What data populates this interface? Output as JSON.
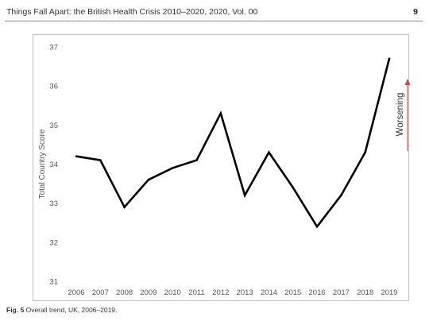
{
  "header": {
    "running_title": "Things Fall Apart: the British Health Crisis 2010–2020, 2020, Vol. 00",
    "page_number": "9"
  },
  "caption": {
    "label": "Fig. 5",
    "text": "Overall trend, UK, 2006–2019."
  },
  "chart_data": {
    "type": "line",
    "title": "",
    "xlabel": "",
    "ylabel": "Total Country Score",
    "categories": [
      "2006",
      "2007",
      "2008",
      "2009",
      "2010",
      "2011",
      "2012",
      "2013",
      "2014",
      "2015",
      "2016",
      "2017",
      "2018",
      "2019"
    ],
    "series": [
      {
        "values": [
          34.2,
          34.1,
          32.9,
          33.6,
          33.9,
          34.1,
          35.3,
          33.2,
          34.3,
          33.4,
          32.4,
          33.2,
          34.3,
          36.7
        ]
      }
    ],
    "ylim": [
      31,
      37
    ],
    "yticks": [
      31,
      32,
      33,
      34,
      35,
      36,
      37
    ],
    "grid": false,
    "legend": "none",
    "annotation": {
      "text": "Worsening",
      "arrow_direction": "up",
      "arrow_color": "#c0504d"
    },
    "line_color": "#000000"
  }
}
